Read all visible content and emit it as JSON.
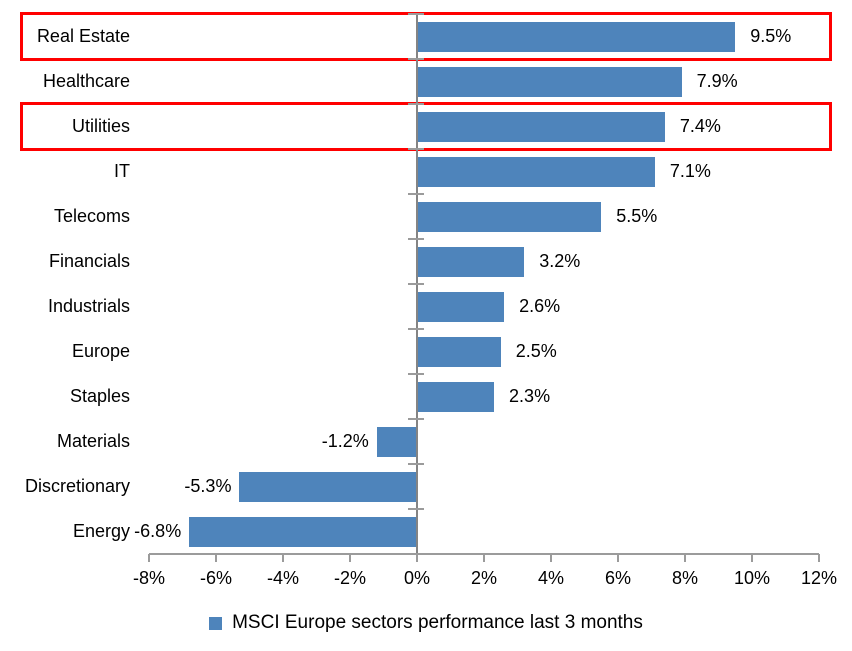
{
  "colors": {
    "bar": "#4e84bb",
    "highlight": "#ff0000",
    "axis": "#9b9b9b",
    "zero_line": "#848484",
    "text": "#000000"
  },
  "chart_data": {
    "type": "bar",
    "orientation": "horizontal",
    "title": "",
    "categories": [
      "Real Estate",
      "Healthcare",
      "Utilities",
      "IT",
      "Telecoms",
      "Financials",
      "Industrials",
      "Europe",
      "Staples",
      "Materials",
      "Discretionary",
      "Energy"
    ],
    "values": [
      9.5,
      7.9,
      7.4,
      7.1,
      5.5,
      3.2,
      2.6,
      2.5,
      2.3,
      -1.2,
      -5.3,
      -6.8
    ],
    "value_labels": [
      "9.5%",
      "7.9%",
      "7.4%",
      "7.1%",
      "5.5%",
      "3.2%",
      "2.6%",
      "2.5%",
      "2.3%",
      "-1.2%",
      "-5.3%",
      "-6.8%"
    ],
    "highlighted_categories": [
      "Real Estate",
      "Utilities"
    ],
    "x_tick_labels": [
      "-8%",
      "-6%",
      "-4%",
      "-2%",
      "0%",
      "2%",
      "4%",
      "6%",
      "8%",
      "10%",
      "12%"
    ],
    "xlim": [
      -8,
      12
    ],
    "grid": false,
    "legend": "MSCI Europe sectors performance last 3 months",
    "legend_position": "bottom"
  }
}
